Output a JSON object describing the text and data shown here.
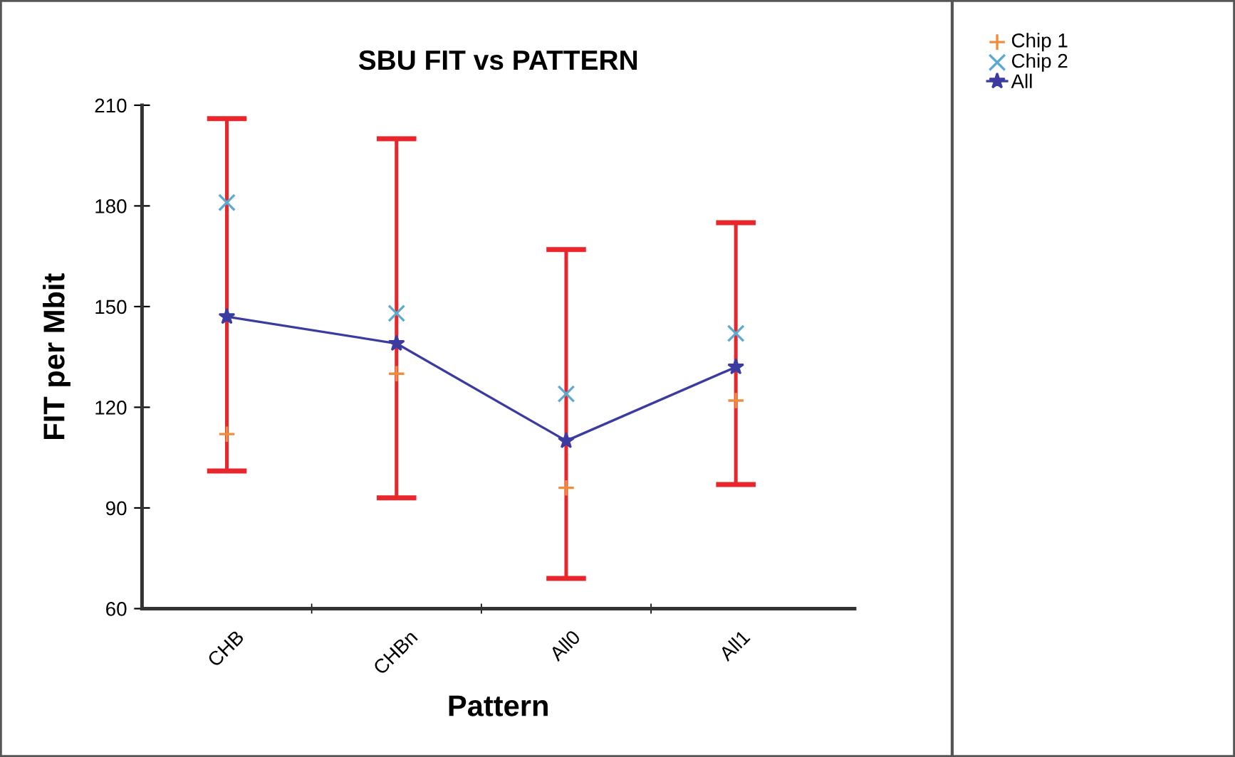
{
  "chart_data": {
    "type": "line",
    "title": "SBU FIT vs PATTERN",
    "xlabel": "Pattern",
    "ylabel": "FIT per Mbit",
    "categories": [
      "CHB",
      "CHBn",
      "All0",
      "All1"
    ],
    "series": [
      {
        "name": "Chip 1",
        "type": "scatter",
        "marker": "plus",
        "color": "#f08c3c",
        "values": [
          112,
          130,
          96,
          122
        ]
      },
      {
        "name": "Chip 2",
        "type": "scatter",
        "marker": "cross",
        "color": "#5aaad2",
        "values": [
          181,
          148,
          124,
          142
        ]
      },
      {
        "name": "All",
        "marker": "star",
        "color": "#3c3ca0",
        "values": [
          147,
          139,
          110,
          132
        ],
        "errors": [
          [
            101,
            206
          ],
          [
            93,
            200
          ],
          [
            69,
            167
          ],
          [
            97,
            175
          ]
        ]
      }
    ],
    "ylim": [
      60,
      210
    ],
    "yticks": [
      60,
      90,
      120,
      150,
      180,
      210
    ],
    "grid": false,
    "legend": "top right"
  }
}
